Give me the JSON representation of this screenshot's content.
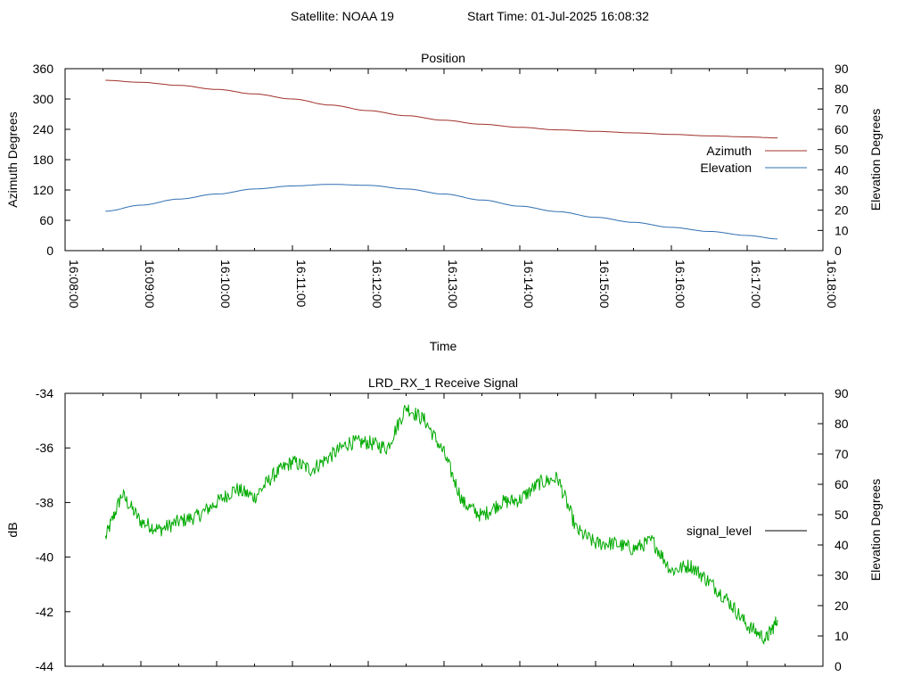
{
  "header": {
    "satellite": "Satellite: NOAA 19",
    "start_time": "Start Time: 01-Jul-2025 16:08:32"
  },
  "chart_data": [
    {
      "type": "line",
      "title": "Position",
      "xlabel": "Time",
      "ylabel": "Azimuth Degrees",
      "y2label": "Elevation Degrees",
      "xlim": [
        "16:08:00",
        "16:18:00"
      ],
      "ylim": [
        0,
        360
      ],
      "y2lim": [
        0,
        90
      ],
      "x_tick_labels": [
        "16:08:00",
        "16:09:00",
        "16:10:00",
        "16:11:00",
        "16:12:00",
        "16:13:00",
        "16:14:00",
        "16:15:00",
        "16:16:00",
        "16:17:00",
        "16:18:00"
      ],
      "y_tick_labels": [
        "0",
        "60",
        "120",
        "180",
        "240",
        "300",
        "360"
      ],
      "y2_tick_labels": [
        "0",
        "10",
        "20",
        "30",
        "40",
        "50",
        "60",
        "70",
        "80",
        "90"
      ],
      "legend_position": "right",
      "series": [
        {
          "name": "Azimuth",
          "color": "#a0302b",
          "axis": "y",
          "x": [
            "16:08:32",
            "16:09:00",
            "16:09:30",
            "16:10:00",
            "16:10:30",
            "16:11:00",
            "16:11:30",
            "16:12:00",
            "16:12:30",
            "16:13:00",
            "16:13:30",
            "16:14:00",
            "16:14:30",
            "16:15:00",
            "16:15:30",
            "16:16:00",
            "16:16:30",
            "16:17:00",
            "16:17:24"
          ],
          "values": [
            337,
            333,
            327,
            319,
            310,
            300,
            288,
            277,
            267,
            258,
            250,
            244,
            239,
            236,
            233,
            230,
            227,
            225,
            223
          ]
        },
        {
          "name": "Elevation",
          "color": "#2f6fb0",
          "axis": "y2",
          "x": [
            "16:08:32",
            "16:09:00",
            "16:09:30",
            "16:10:00",
            "16:10:30",
            "16:11:00",
            "16:11:30",
            "16:12:00",
            "16:12:30",
            "16:13:00",
            "16:13:30",
            "16:14:00",
            "16:14:30",
            "16:15:00",
            "16:15:30",
            "16:16:00",
            "16:16:30",
            "16:17:00",
            "16:17:24"
          ],
          "values": [
            19.5,
            22.5,
            25.5,
            28,
            30.5,
            32,
            32.8,
            32.3,
            30.5,
            28,
            25,
            22,
            19.3,
            16.5,
            14,
            11.5,
            9.5,
            7.5,
            5.8
          ]
        }
      ]
    },
    {
      "type": "line",
      "title": "LRD_RX_1 Receive Signal",
      "ylabel": "dB",
      "y2label": "Elevation Degrees",
      "xlim": [
        "16:08:00",
        "16:18:00"
      ],
      "ylim": [
        -44,
        -34
      ],
      "y2lim": [
        0,
        90
      ],
      "y_tick_labels": [
        "-44",
        "-42",
        "-40",
        "-38",
        "-36",
        "-34"
      ],
      "y2_tick_labels": [
        "0",
        "10",
        "20",
        "30",
        "40",
        "50",
        "60",
        "70",
        "80",
        "90"
      ],
      "legend_position": "right",
      "legend_sample_color": "#000000",
      "series": [
        {
          "name": "signal_level",
          "color": "#00aa00",
          "axis": "y",
          "x": [
            "16:08:32",
            "16:08:45",
            "16:09:00",
            "16:09:15",
            "16:09:30",
            "16:09:45",
            "16:10:00",
            "16:10:15",
            "16:10:30",
            "16:10:45",
            "16:11:00",
            "16:11:15",
            "16:11:30",
            "16:11:45",
            "16:12:00",
            "16:12:15",
            "16:12:30",
            "16:12:45",
            "16:13:00",
            "16:13:15",
            "16:13:30",
            "16:13:45",
            "16:14:00",
            "16:14:15",
            "16:14:30",
            "16:14:45",
            "16:15:00",
            "16:15:15",
            "16:15:30",
            "16:15:45",
            "16:16:00",
            "16:16:15",
            "16:16:30",
            "16:16:45",
            "16:17:00",
            "16:17:15",
            "16:17:24"
          ],
          "values": [
            -39.3,
            -37.7,
            -38.7,
            -39.0,
            -38.7,
            -38.5,
            -38.0,
            -37.5,
            -37.8,
            -37.0,
            -36.5,
            -36.8,
            -36.3,
            -35.8,
            -35.8,
            -36.0,
            -34.5,
            -35.0,
            -36.2,
            -38.0,
            -38.5,
            -38.0,
            -37.9,
            -37.3,
            -37.1,
            -39.0,
            -39.5,
            -39.5,
            -39.7,
            -39.4,
            -40.5,
            -40.3,
            -40.9,
            -41.6,
            -42.5,
            -43.0,
            -42.3
          ]
        }
      ]
    }
  ]
}
